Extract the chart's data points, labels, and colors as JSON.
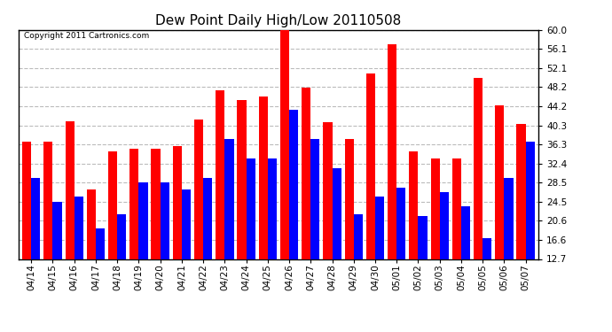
{
  "title": "Dew Point Daily High/Low 20110508",
  "copyright": "Copyright 2011 Cartronics.com",
  "categories": [
    "04/14",
    "04/15",
    "04/16",
    "04/17",
    "04/18",
    "04/19",
    "04/20",
    "04/21",
    "04/22",
    "04/23",
    "04/24",
    "04/25",
    "04/26",
    "04/27",
    "04/28",
    "04/29",
    "04/30",
    "05/01",
    "05/02",
    "05/03",
    "05/04",
    "05/05",
    "05/06",
    "05/07"
  ],
  "highs": [
    37.0,
    37.0,
    41.2,
    27.0,
    35.0,
    35.5,
    35.5,
    36.0,
    41.5,
    47.5,
    45.5,
    46.2,
    60.0,
    48.0,
    41.0,
    37.5,
    51.0,
    57.0,
    35.0,
    33.5,
    33.5,
    50.0,
    44.5,
    40.5
  ],
  "lows": [
    29.5,
    24.5,
    25.5,
    19.0,
    22.0,
    28.5,
    28.5,
    27.0,
    29.5,
    37.5,
    33.5,
    33.5,
    43.5,
    37.5,
    31.5,
    22.0,
    25.5,
    27.5,
    21.5,
    26.5,
    23.5,
    17.0,
    29.5,
    37.0
  ],
  "high_color": "#ff0000",
  "low_color": "#0000ff",
  "background_color": "#ffffff",
  "plot_bg_color": "#ffffff",
  "grid_color": "#aaaaaa",
  "yticks": [
    12.7,
    16.6,
    20.6,
    24.5,
    28.5,
    32.4,
    36.3,
    40.3,
    44.2,
    48.2,
    52.1,
    56.1,
    60.0
  ],
  "ylim": [
    12.7,
    60.0
  ],
  "title_fontsize": 11,
  "tick_fontsize": 7.5,
  "bar_width": 0.42
}
